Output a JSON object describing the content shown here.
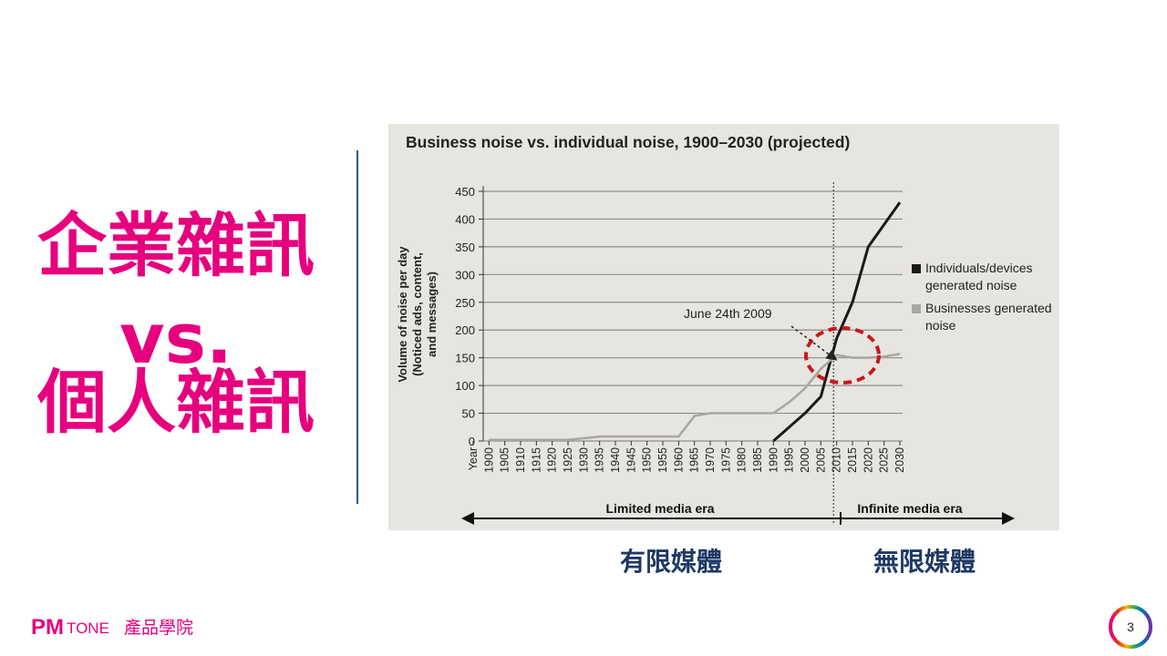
{
  "slide": {
    "title_lines": [
      "企業雜訊",
      "vs.",
      "個人雜訊"
    ],
    "captions": [
      "有限媒體",
      "無限媒體"
    ],
    "footer": {
      "brand_pm": "PM",
      "brand_tone": "TONE",
      "academy": "產品學院",
      "page": "3"
    }
  },
  "chart_data": {
    "type": "line",
    "title": "Business noise vs. individual noise, 1900–2030 (projected)",
    "ylabel_lines": [
      "Volume of noise per day",
      "(Noticed ads, content,",
      "and messages)"
    ],
    "categories": [
      "Year",
      "1900",
      "1905",
      "1910",
      "1915",
      "1920",
      "1925",
      "1930",
      "1935",
      "1940",
      "1945",
      "1950",
      "1955",
      "1960",
      "1965",
      "1970",
      "1975",
      "1980",
      "1985",
      "1990",
      "1995",
      "2000",
      "2005",
      "2010",
      "2015",
      "2020",
      "2025",
      "2030"
    ],
    "series": [
      {
        "name": "Individuals/devices generated noise",
        "color": "#1a1a1a",
        "values": [
          null,
          null,
          null,
          null,
          null,
          null,
          null,
          null,
          null,
          null,
          null,
          null,
          null,
          null,
          null,
          null,
          null,
          null,
          null,
          0,
          25,
          50,
          80,
          185,
          250,
          350,
          390,
          430
        ]
      },
      {
        "name": "Businesses generated noise",
        "color": "#a8a6a0",
        "values": [
          null,
          2,
          2,
          2,
          2,
          2,
          2,
          5,
          8,
          8,
          8,
          8,
          8,
          8,
          45,
          50,
          50,
          50,
          50,
          50,
          70,
          95,
          130,
          155,
          150,
          150,
          152,
          157
        ]
      }
    ],
    "ylim": [
      0,
      450
    ],
    "yticks": [
      0,
      50,
      100,
      150,
      200,
      250,
      300,
      350,
      400,
      450
    ],
    "grid": true,
    "annotation": "June 24th 2009",
    "eras": [
      "Limited media era",
      "Infinite media era"
    ]
  }
}
